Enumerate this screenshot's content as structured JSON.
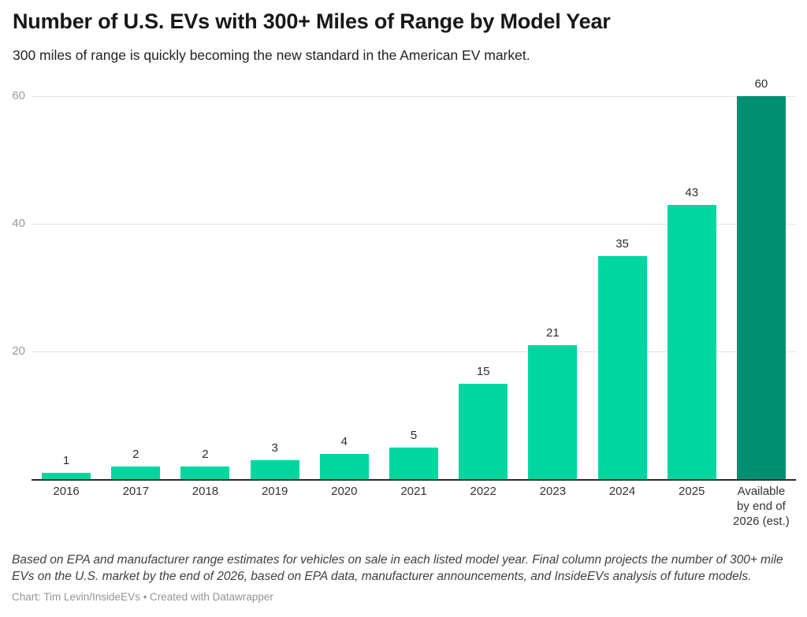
{
  "chart": {
    "title": "Number of U.S. EVs with 300+ Miles of Range by Model Year",
    "subtitle": "300 miles of range is quickly becoming the new standard in the American EV market.",
    "footnote": "Based on EPA and manufacturer range estimates for vehicles on sale in each listed model year. Final column projects the number of 300+ mile EVs on the U.S. market by the end of 2026, based on EPA data, manufacturer announcements, and InsideEVs analysis of future models.",
    "credit": "Chart: Tim Levin/InsideEVs • Created with Datawrapper"
  },
  "chart_data": {
    "type": "bar",
    "title": "Number of U.S. EVs with 300+ Miles of Range by Model Year",
    "subtitle": "300 miles of range is quickly becoming the new standard in the American EV market.",
    "categories": [
      "2016",
      "2017",
      "2018",
      "2019",
      "2020",
      "2021",
      "2022",
      "2023",
      "2024",
      "2025",
      "Available by end of 2026 (est.)"
    ],
    "values": [
      1,
      2,
      2,
      3,
      4,
      5,
      15,
      21,
      35,
      43,
      60
    ],
    "value_labels_shown": true,
    "yticks": [
      20,
      40,
      60
    ],
    "ylim": [
      0,
      60
    ],
    "grid": "horizontal",
    "legend": "none",
    "xlabel": "",
    "ylabel": "",
    "colors": {
      "bar_default": "#00d7a0",
      "bar_final_estimate": "#008f73",
      "gridline": "#e2e2e2",
      "baseline": "#2b2b2b",
      "axis_tick_text": "#9b9b9b"
    },
    "final_estimate_index": 10
  }
}
